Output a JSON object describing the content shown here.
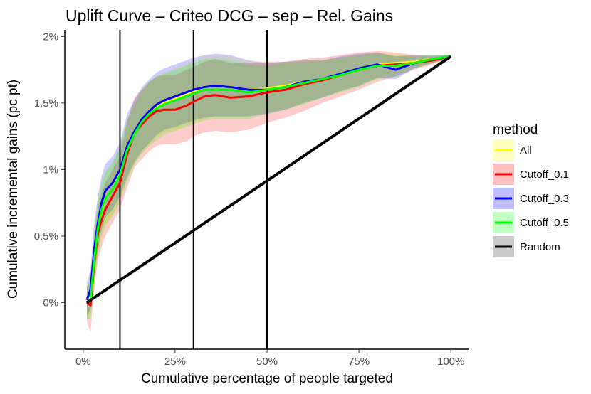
{
  "chart_data": {
    "type": "line",
    "title": "Uplift Curve –  Criteo DCG  –  sep  –  Rel. Gains",
    "xlabel": "Cumulative percentage of people targeted",
    "ylabel": "Cumulative incremental gains (pc pt)",
    "xlim": [
      -0.05,
      1.05
    ],
    "ylim": [
      -0.35,
      2.05
    ],
    "x_ticks": [
      {
        "value": 0,
        "label": "0%"
      },
      {
        "value": 0.25,
        "label": "25%"
      },
      {
        "value": 0.5,
        "label": "50%"
      },
      {
        "value": 0.75,
        "label": "75%"
      },
      {
        "value": 1.0,
        "label": "100%"
      }
    ],
    "y_ticks": [
      {
        "value": 0,
        "label": "0%"
      },
      {
        "value": 0.5,
        "label": "0.5%"
      },
      {
        "value": 1.0,
        "label": "1%"
      },
      {
        "value": 1.5,
        "label": "1.5%"
      },
      {
        "value": 2.0,
        "label": "2%"
      }
    ],
    "vertical_lines": [
      0.1,
      0.3,
      0.5
    ],
    "grid": false,
    "legend": {
      "title": "method",
      "position": "right"
    },
    "series": [
      {
        "name": "All",
        "color": "#ffff00",
        "x": [
          0.01,
          0.02,
          0.03,
          0.04,
          0.05,
          0.06,
          0.08,
          0.1,
          0.12,
          0.14,
          0.16,
          0.18,
          0.2,
          0.22,
          0.25,
          0.28,
          0.3,
          0.33,
          0.36,
          0.4,
          0.45,
          0.5,
          0.55,
          0.6,
          0.65,
          0.7,
          0.75,
          0.8,
          0.85,
          0.9,
          0.95,
          1.0
        ],
        "values": [
          0.0,
          0.05,
          0.35,
          0.55,
          0.68,
          0.78,
          0.85,
          0.97,
          1.15,
          1.28,
          1.36,
          1.42,
          1.47,
          1.5,
          1.53,
          1.57,
          1.59,
          1.62,
          1.63,
          1.62,
          1.6,
          1.61,
          1.63,
          1.66,
          1.68,
          1.72,
          1.76,
          1.79,
          1.8,
          1.81,
          1.83,
          1.85
        ],
        "lower": [
          -0.1,
          -0.1,
          0.15,
          0.35,
          0.48,
          0.58,
          0.65,
          0.77,
          0.92,
          1.05,
          1.12,
          1.18,
          1.24,
          1.28,
          1.3,
          1.33,
          1.36,
          1.38,
          1.4,
          1.4,
          1.4,
          1.43,
          1.46,
          1.5,
          1.55,
          1.59,
          1.63,
          1.69,
          1.73,
          1.77,
          1.8,
          1.84
        ],
        "upper": [
          0.1,
          0.2,
          0.55,
          0.75,
          0.88,
          0.98,
          1.05,
          1.17,
          1.38,
          1.5,
          1.6,
          1.66,
          1.7,
          1.73,
          1.76,
          1.8,
          1.82,
          1.85,
          1.86,
          1.85,
          1.82,
          1.8,
          1.81,
          1.82,
          1.82,
          1.84,
          1.86,
          1.88,
          1.87,
          1.86,
          1.86,
          1.86
        ]
      },
      {
        "name": "Cutoff_0.1",
        "color": "#ff0000",
        "x": [
          0.01,
          0.02,
          0.03,
          0.04,
          0.05,
          0.06,
          0.08,
          0.1,
          0.12,
          0.14,
          0.16,
          0.18,
          0.2,
          0.22,
          0.25,
          0.28,
          0.3,
          0.33,
          0.36,
          0.4,
          0.45,
          0.5,
          0.55,
          0.6,
          0.65,
          0.7,
          0.75,
          0.8,
          0.85,
          0.9,
          0.95,
          1.0
        ],
        "values": [
          0.0,
          -0.02,
          0.3,
          0.52,
          0.62,
          0.7,
          0.8,
          0.9,
          1.12,
          1.28,
          1.34,
          1.4,
          1.44,
          1.45,
          1.45,
          1.48,
          1.51,
          1.55,
          1.56,
          1.54,
          1.55,
          1.58,
          1.6,
          1.64,
          1.67,
          1.71,
          1.75,
          1.78,
          1.79,
          1.8,
          1.82,
          1.85
        ],
        "lower": [
          -0.15,
          -0.22,
          0.1,
          0.32,
          0.42,
          0.5,
          0.6,
          0.7,
          0.87,
          1.02,
          1.08,
          1.14,
          1.18,
          1.19,
          1.19,
          1.21,
          1.25,
          1.28,
          1.29,
          1.28,
          1.3,
          1.35,
          1.39,
          1.44,
          1.5,
          1.55,
          1.6,
          1.66,
          1.7,
          1.75,
          1.79,
          1.84
        ],
        "upper": [
          0.12,
          0.15,
          0.5,
          0.72,
          0.82,
          0.9,
          1.0,
          1.1,
          1.37,
          1.54,
          1.6,
          1.66,
          1.7,
          1.71,
          1.71,
          1.75,
          1.77,
          1.81,
          1.83,
          1.8,
          1.8,
          1.81,
          1.81,
          1.83,
          1.84,
          1.86,
          1.88,
          1.89,
          1.88,
          1.86,
          1.85,
          1.86
        ]
      },
      {
        "name": "Cutoff_0.3",
        "color": "#0000ff",
        "x": [
          0.01,
          0.02,
          0.03,
          0.04,
          0.05,
          0.06,
          0.08,
          0.1,
          0.12,
          0.14,
          0.16,
          0.18,
          0.2,
          0.22,
          0.25,
          0.28,
          0.3,
          0.33,
          0.36,
          0.4,
          0.45,
          0.5,
          0.55,
          0.6,
          0.65,
          0.7,
          0.75,
          0.8,
          0.85,
          0.9,
          0.95,
          1.0
        ],
        "values": [
          0.02,
          0.1,
          0.4,
          0.6,
          0.75,
          0.84,
          0.9,
          1.0,
          1.18,
          1.29,
          1.38,
          1.44,
          1.49,
          1.52,
          1.55,
          1.58,
          1.6,
          1.62,
          1.63,
          1.62,
          1.6,
          1.6,
          1.62,
          1.66,
          1.68,
          1.72,
          1.76,
          1.79,
          1.75,
          1.8,
          1.83,
          1.85
        ],
        "lower": [
          -0.1,
          -0.05,
          0.2,
          0.4,
          0.55,
          0.64,
          0.7,
          0.8,
          0.95,
          1.06,
          1.14,
          1.2,
          1.26,
          1.3,
          1.32,
          1.35,
          1.37,
          1.39,
          1.4,
          1.4,
          1.4,
          1.42,
          1.45,
          1.5,
          1.54,
          1.59,
          1.63,
          1.69,
          1.68,
          1.76,
          1.8,
          1.84
        ],
        "upper": [
          0.15,
          0.25,
          0.6,
          0.8,
          0.95,
          1.04,
          1.1,
          1.2,
          1.42,
          1.53,
          1.62,
          1.68,
          1.73,
          1.76,
          1.79,
          1.82,
          1.84,
          1.86,
          1.87,
          1.86,
          1.82,
          1.8,
          1.81,
          1.82,
          1.82,
          1.85,
          1.87,
          1.88,
          1.85,
          1.86,
          1.86,
          1.86
        ]
      },
      {
        "name": "Cutoff_0.5",
        "color": "#00ff00",
        "x": [
          0.01,
          0.02,
          0.03,
          0.04,
          0.05,
          0.06,
          0.08,
          0.1,
          0.12,
          0.14,
          0.16,
          0.18,
          0.2,
          0.22,
          0.25,
          0.28,
          0.3,
          0.33,
          0.36,
          0.4,
          0.45,
          0.5,
          0.55,
          0.6,
          0.65,
          0.7,
          0.75,
          0.8,
          0.85,
          0.9,
          0.95,
          1.0
        ],
        "values": [
          0.0,
          0.02,
          0.32,
          0.56,
          0.7,
          0.78,
          0.85,
          0.96,
          1.15,
          1.27,
          1.36,
          1.42,
          1.46,
          1.49,
          1.52,
          1.55,
          1.57,
          1.6,
          1.6,
          1.6,
          1.58,
          1.6,
          1.62,
          1.65,
          1.68,
          1.71,
          1.75,
          1.78,
          1.78,
          1.8,
          1.83,
          1.85
        ],
        "lower": [
          -0.12,
          -0.12,
          0.12,
          0.36,
          0.5,
          0.58,
          0.65,
          0.76,
          0.92,
          1.04,
          1.12,
          1.18,
          1.22,
          1.26,
          1.29,
          1.32,
          1.34,
          1.37,
          1.38,
          1.38,
          1.38,
          1.42,
          1.45,
          1.49,
          1.54,
          1.58,
          1.62,
          1.68,
          1.7,
          1.76,
          1.8,
          1.84
        ],
        "upper": [
          0.12,
          0.18,
          0.52,
          0.76,
          0.9,
          0.98,
          1.05,
          1.16,
          1.38,
          1.5,
          1.6,
          1.66,
          1.7,
          1.72,
          1.75,
          1.78,
          1.8,
          1.83,
          1.83,
          1.82,
          1.79,
          1.78,
          1.8,
          1.81,
          1.82,
          1.84,
          1.86,
          1.87,
          1.86,
          1.85,
          1.86,
          1.86
        ]
      },
      {
        "name": "Random",
        "color": "#000000",
        "x": [
          0.01,
          1.0
        ],
        "values": [
          0.0,
          1.85
        ]
      }
    ]
  }
}
